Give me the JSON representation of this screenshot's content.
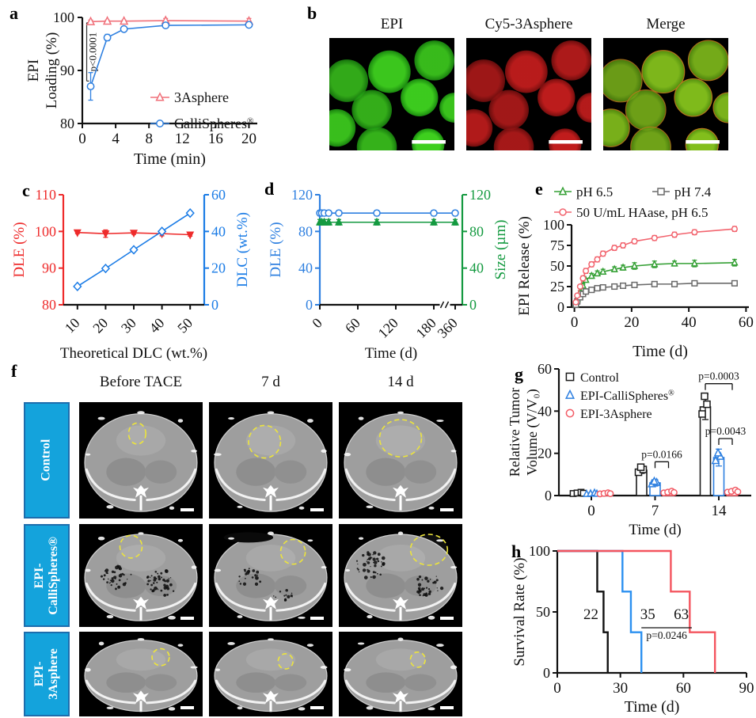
{
  "figure": {
    "panel_labels": [
      "a",
      "b",
      "c",
      "d",
      "e",
      "f",
      "g",
      "h"
    ]
  },
  "panel_b": {
    "titles": [
      "EPI",
      "Cy5-3Asphere",
      "Merge"
    ],
    "colors": {
      "epi_center": "#3fd31f",
      "epi_edge": "#1c9110",
      "cy5_center": "#c41d1d",
      "cy5_edge": "#7d0f0f",
      "merge_center": "#85c21d",
      "merge_edge": "#56950f",
      "merge_rim": "#bd7d1e"
    },
    "spheres": [
      [
        14,
        38,
        17
      ],
      [
        48,
        30,
        17
      ],
      [
        84,
        20,
        16
      ],
      [
        34,
        64,
        16
      ],
      [
        72,
        53,
        15
      ],
      [
        6,
        80,
        15
      ],
      [
        38,
        97,
        16
      ],
      [
        79,
        95,
        13
      ],
      [
        100,
        62,
        12
      ]
    ]
  },
  "panel_f": {
    "col_headers": [
      "Before TACE",
      "7 d",
      "14 d"
    ],
    "row_labels": [
      [
        "Control",
        ""
      ],
      [
        "EPI-",
        "CalliSpheres®"
      ],
      [
        "EPI-",
        "3Asphere"
      ]
    ],
    "label_box_fill": "#14a3dc",
    "label_box_border": "#1d6dad",
    "tumor_outline": "#ece43c",
    "cells": [
      {
        "tumor": [
          0.47,
          0.27,
          0.07,
          0.09
        ]
      },
      {
        "tumor": [
          0.45,
          0.34,
          0.13,
          0.14
        ]
      },
      {
        "tumor": [
          0.5,
          0.31,
          0.17,
          0.16
        ]
      },
      {
        "tumor": [
          0.42,
          0.22,
          0.09,
          0.11
        ],
        "speckles": [
          [
            0.3,
            0.52,
            0.13
          ],
          [
            0.67,
            0.58,
            0.14
          ]
        ]
      },
      {
        "tumor": [
          0.68,
          0.27,
          0.1,
          0.12
        ],
        "speckles": [
          [
            0.33,
            0.52,
            0.1
          ],
          [
            0.6,
            0.68,
            0.08
          ]
        ],
        "pockets": [
          [
            0.32,
            0.13,
            0.2,
            0.05
          ]
        ]
      },
      {
        "tumor": [
          0.73,
          0.25,
          0.15,
          0.15
        ],
        "speckles": [
          [
            0.28,
            0.4,
            0.14
          ],
          [
            0.73,
            0.6,
            0.12
          ]
        ]
      },
      {
        "tumor": [
          0.66,
          0.3,
          0.07,
          0.1
        ]
      },
      {
        "tumor": [
          0.62,
          0.35,
          0.06,
          0.09
        ]
      },
      {
        "tumor": [
          0.64,
          0.33,
          0.06,
          0.09
        ]
      }
    ]
  },
  "chart_data": [
    {
      "id": "a",
      "type": "line",
      "xlabel": "Time (min)",
      "ylabel": [
        "EPI",
        "Loading (%)"
      ],
      "xlim": [
        0,
        21
      ],
      "ylim": [
        80,
        100
      ],
      "xticks": [
        0,
        4,
        8,
        12,
        16,
        20
      ],
      "yticks": [
        80,
        90,
        100
      ],
      "annotation": {
        "text": "p<0.0001",
        "x": 1,
        "y_from": 88,
        "y_to": 99
      },
      "series": [
        {
          "name": "3Asphere",
          "color": "#f0707a",
          "marker": "triangle",
          "x": [
            1,
            3,
            5,
            10,
            20
          ],
          "y": [
            99.2,
            99.3,
            99.3,
            99.4,
            99.3
          ],
          "err": [
            0.3,
            0.2,
            0.2,
            0.4,
            0.5
          ]
        },
        {
          "name": "CalliSpheres®",
          "color": "#2f80e0",
          "marker": "circle",
          "x": [
            1,
            3,
            5,
            10,
            20
          ],
          "y": [
            87,
            96.2,
            97.8,
            98.5,
            98.6
          ],
          "err": [
            2.6,
            0.6,
            0.4,
            0.5,
            0.5
          ]
        }
      ]
    },
    {
      "id": "c",
      "type": "dual-line",
      "xlabel": "Theoretical DLC (wt.%)",
      "ylabel_left": "DLE (%)",
      "ylabel_right": "DLC (wt.%)",
      "left_color": "#ee2b2b",
      "right_color": "#1b7ce6",
      "xlim": [
        5,
        55
      ],
      "xticks": [
        10,
        20,
        30,
        40,
        50
      ],
      "ylim_left": [
        80,
        110
      ],
      "yticks_left": [
        80,
        90,
        100,
        110
      ],
      "ylim_right": [
        0,
        60
      ],
      "yticks_right": [
        0,
        20,
        40,
        60
      ],
      "series": [
        {
          "name": "DLE",
          "axis": "left",
          "color": "#ee2b2b",
          "marker": "triangle-down",
          "filled": true,
          "x": [
            10,
            20,
            30,
            40,
            50
          ],
          "y": [
            99.7,
            99.4,
            99.6,
            99.4,
            99.1
          ],
          "err": [
            0.3,
            1.0,
            0.4,
            0.6,
            0.4
          ]
        },
        {
          "name": "DLC",
          "axis": "right",
          "color": "#1b7ce6",
          "marker": "diamond",
          "filled": false,
          "x": [
            10,
            20,
            30,
            40,
            50
          ],
          "y": [
            10,
            19.8,
            30,
            40,
            50
          ],
          "err": [
            0.5,
            0.7,
            0.6,
            0.8,
            0.6
          ]
        }
      ]
    },
    {
      "id": "d",
      "type": "dual-line-break",
      "xlabel": "Time (d)",
      "ylabel_left": "DLE (%)",
      "ylabel_right": "Size (µm)",
      "left_color": "#2f80e0",
      "right_color": "#149a40",
      "xticks": [
        0,
        60,
        120,
        180,
        360
      ],
      "break_after": 180,
      "ylim": [
        0,
        120
      ],
      "yticks": [
        0,
        40,
        80,
        120
      ],
      "series": [
        {
          "name": "DLE",
          "color": "#2f80e0",
          "marker": "circle",
          "filled": false,
          "x": [
            0,
            3,
            7,
            14,
            30,
            90,
            180,
            360
          ],
          "y": [
            100,
            100,
            100,
            100,
            100,
            100,
            100,
            100
          ],
          "err": [
            3,
            3,
            3,
            3,
            3,
            3,
            3,
            3
          ]
        },
        {
          "name": "Size",
          "color": "#149a40",
          "marker": "triangle",
          "filled": true,
          "x": [
            0,
            3,
            7,
            14,
            30,
            90,
            180,
            360
          ],
          "y": [
            90,
            90,
            90,
            90,
            90,
            90,
            90,
            90
          ],
          "err": [
            3,
            3,
            3,
            3,
            3,
            3,
            3,
            3
          ]
        }
      ]
    },
    {
      "id": "e",
      "type": "line",
      "xlabel": "Time (d)",
      "ylabel": [
        "EPI Release (%)"
      ],
      "xlim": [
        -1,
        61
      ],
      "ylim": [
        0,
        100
      ],
      "xticks": [
        0,
        20,
        40,
        60
      ],
      "yticks": [
        0,
        25,
        50,
        75,
        100
      ],
      "legend_rows": [
        [
          "pH 6.5",
          "pH 7.4"
        ],
        [
          "50 U/mL HAase, pH 6.5"
        ]
      ],
      "series": [
        {
          "name": "pH 6.5",
          "color": "#35a035",
          "marker": "triangle",
          "x": [
            0.5,
            1,
            2,
            3,
            4,
            6,
            8,
            10,
            14,
            17,
            21,
            28,
            35,
            42,
            56
          ],
          "y": [
            4,
            10,
            18,
            26,
            33,
            38,
            41,
            43,
            46,
            48,
            50,
            52,
            53,
            53,
            54
          ],
          "err": [
            1,
            1,
            2,
            2,
            2,
            3,
            3,
            3,
            3,
            3,
            4,
            4,
            3,
            4,
            4
          ]
        },
        {
          "name": "pH 7.4",
          "color": "#6a6a6a",
          "marker": "square",
          "x": [
            0.5,
            1,
            2,
            3,
            4,
            6,
            8,
            10,
            14,
            17,
            21,
            28,
            35,
            42,
            56
          ],
          "y": [
            3,
            7,
            12,
            16,
            19,
            21,
            23,
            24,
            25,
            26,
            27,
            28,
            28,
            29,
            29
          ],
          "err": [
            1,
            1,
            1,
            1,
            1,
            1,
            1,
            1,
            1,
            1,
            1,
            1,
            1,
            1,
            2
          ]
        },
        {
          "name": "50 U/mL HAase, pH 6.5",
          "color": "#f2646e",
          "marker": "circle",
          "x": [
            0.5,
            1,
            2,
            3,
            4,
            6,
            8,
            10,
            14,
            17,
            21,
            28,
            35,
            42,
            56
          ],
          "y": [
            6,
            14,
            25,
            35,
            44,
            52,
            58,
            65,
            72,
            75,
            80,
            84,
            88,
            91,
            95
          ],
          "err": [
            1,
            2,
            2,
            3,
            3,
            3,
            3,
            3,
            3,
            3,
            3,
            3,
            3,
            3,
            3
          ]
        }
      ]
    },
    {
      "id": "g",
      "type": "grouped-bar",
      "xlabel": "Time (d)",
      "ylabel": [
        "Relative Tumor",
        "Volume (V/V₀)"
      ],
      "categories": [
        "0",
        "7",
        "14"
      ],
      "ylim": [
        0,
        60
      ],
      "yticks": [
        0,
        20,
        40,
        60
      ],
      "series": [
        {
          "name": "Control",
          "color": "#1a1a1a",
          "marker": "square",
          "values": [
            1.2,
            12,
            42
          ],
          "err": [
            0.3,
            1.5,
            6
          ]
        },
        {
          "name": "EPI-CalliSpheres®",
          "color": "#2f80e0",
          "marker": "triangle",
          "values": [
            1.0,
            6,
            18
          ],
          "err": [
            0.3,
            1.5,
            4
          ]
        },
        {
          "name": "EPI-3Asphere",
          "color": "#f25c66",
          "marker": "circle",
          "values": [
            1.0,
            1.6,
            2.0
          ],
          "err": [
            0.3,
            0.5,
            0.6
          ]
        }
      ],
      "pvalues": [
        {
          "label": "p=0.0166",
          "cat": 1,
          "from": 1,
          "to": 2,
          "y": 16
        },
        {
          "label": "p=0.0003",
          "cat": 2,
          "from": 0,
          "to": 2,
          "y": 53
        },
        {
          "label": "p=0.0043",
          "cat": 2,
          "from": 1,
          "to": 2,
          "y": 27
        }
      ]
    },
    {
      "id": "h",
      "type": "step",
      "xlabel": "Time (d)",
      "ylabel": [
        "Survival Rate (%)"
      ],
      "xlim": [
        0,
        90
      ],
      "ylim": [
        0,
        100
      ],
      "xticks": [
        0,
        30,
        60,
        90
      ],
      "yticks": [
        0,
        50,
        100
      ],
      "series": [
        {
          "name": "Control",
          "color": "#111111",
          "points": [
            [
              0,
              100
            ],
            [
              19,
              100
            ],
            [
              19,
              66.7
            ],
            [
              22,
              66.7
            ],
            [
              22,
              33.3
            ],
            [
              24,
              33.3
            ],
            [
              24,
              0
            ]
          ],
          "median_label": "22",
          "label_x": 16,
          "label_y": 44
        },
        {
          "name": "EPI-CalliSpheres®",
          "color": "#2b90f0",
          "points": [
            [
              0,
              100
            ],
            [
              31,
              100
            ],
            [
              31,
              66.7
            ],
            [
              35,
              66.7
            ],
            [
              35,
              33.3
            ],
            [
              40,
              33.3
            ],
            [
              40,
              0
            ]
          ],
          "median_label": "35",
          "label_x": 43,
          "label_y": 44
        },
        {
          "name": "EPI-3Asphere",
          "color": "#f4555f",
          "points": [
            [
              0,
              100
            ],
            [
              54,
              100
            ],
            [
              54,
              66.7
            ],
            [
              63,
              66.7
            ],
            [
              63,
              33.3
            ],
            [
              75,
              33.3
            ],
            [
              75,
              0
            ]
          ],
          "median_label": "63",
          "label_x": 59,
          "label_y": 44
        }
      ],
      "pvalue": {
        "label": "p=0.0246",
        "x1": 40,
        "x2": 64,
        "y": 37,
        "text_x": 52,
        "text_y": 28
      }
    }
  ]
}
